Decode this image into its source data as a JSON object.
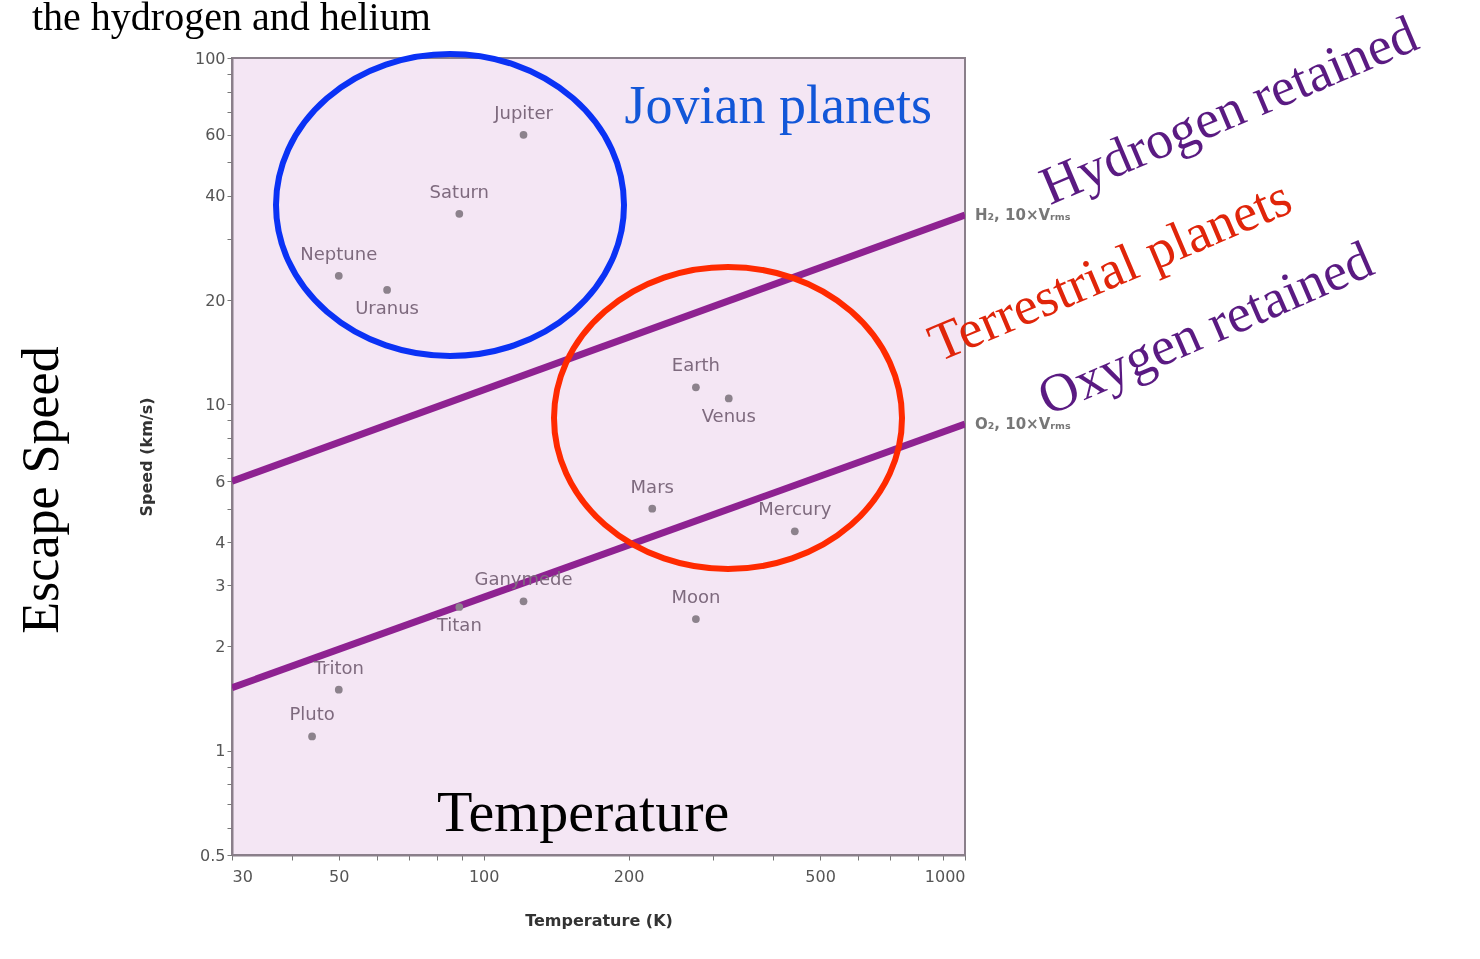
{
  "chart_data": {
    "type": "scatter",
    "title": "the hydrogen and helium",
    "xlabel": "Temperature (K)",
    "ylabel": "Speed (km/s)",
    "log": "xy",
    "marker": "circle",
    "xlim": [
      30,
      1000
    ],
    "ylim": [
      0.5,
      100
    ],
    "xticks": [
      30,
      {
        "value": 40,
        "label": null
      },
      50,
      {
        "value": 60,
        "label": null
      },
      {
        "value": 70,
        "label": null
      },
      {
        "value": 80,
        "label": null
      },
      {
        "value": 90,
        "label": null
      },
      100,
      200,
      {
        "value": 300,
        "label": null
      },
      {
        "value": 400,
        "label": null
      },
      500,
      {
        "value": 600,
        "label": null
      },
      {
        "value": 700,
        "label": null
      },
      {
        "value": 800,
        "label": null
      },
      {
        "value": 900,
        "label": null
      },
      1000
    ],
    "yticks": [
      0.5,
      {
        "value": 0.6,
        "label": null
      },
      {
        "value": 0.7,
        "label": null
      },
      {
        "value": 0.8,
        "label": null
      },
      {
        "value": 0.9,
        "label": null
      },
      1,
      2,
      3,
      4,
      {
        "value": 5,
        "label": null
      },
      6,
      {
        "value": 7,
        "label": null
      },
      {
        "value": 8,
        "label": null
      },
      {
        "value": 9,
        "label": null
      },
      10,
      20,
      {
        "value": 30,
        "label": null
      },
      40,
      {
        "value": 50,
        "label": null
      },
      60,
      {
        "value": 70,
        "label": null
      },
      {
        "value": 80,
        "label": null
      },
      {
        "value": 90,
        "label": null
      },
      100
    ],
    "series": [
      {
        "color": "#8c828c",
        "x": [
          121,
          89,
          50,
          63,
          276,
          323,
          224,
          443,
          276,
          121,
          89,
          50,
          44
        ],
        "values": [
          60,
          35.5,
          23.5,
          21.4,
          11.2,
          10.4,
          5.0,
          4.3,
          2.4,
          2.7,
          2.6,
          1.5,
          1.1
        ]
      },
      {
        "type": "line",
        "marker": "none",
        "line_style": "solid",
        "name": "H₂, 10×Vᵣₘₛ",
        "color": "#8e2291",
        "x": [
          30,
          1000
        ],
        "values": [
          6.0,
          35.2
        ]
      },
      {
        "type": "line",
        "marker": "none",
        "line_style": "solid",
        "name": "O₂, 10×Vᵣₘₛ",
        "color": "#8e2291",
        "x": [
          30,
          1000
        ],
        "values": [
          1.52,
          8.77
        ]
      }
    ],
    "annotations": [
      {
        "text": "Jupiter",
        "x": 121,
        "y": 60
      },
      {
        "text": "Saturn",
        "x": 89,
        "y": 35.5
      },
      {
        "text": "Neptune",
        "x": 50,
        "y": 23.5
      },
      {
        "text": "Uranus",
        "x": 63,
        "y": 21.4
      },
      {
        "text": "Earth",
        "x": 276,
        "y": 11.2
      },
      {
        "text": "Venus",
        "x": 323,
        "y": 10.4
      },
      {
        "text": "Mars",
        "x": 224,
        "y": 5.0
      },
      {
        "text": "Mercury",
        "x": 443,
        "y": 4.3
      },
      {
        "text": "Moon",
        "x": 276,
        "y": 2.4
      },
      {
        "text": "Ganymede",
        "x": 121,
        "y": 2.7
      },
      {
        "text": "Titan",
        "x": 89,
        "y": 2.6
      },
      {
        "text": "Triton",
        "x": 50,
        "y": 1.5
      },
      {
        "text": "Pluto",
        "x": 44,
        "y": 1.1
      },
      "Escape Speed",
      "Temperature",
      "Jovian planets",
      "Hydrogen retained",
      "Terrestrial planets",
      "Oxygen retained"
    ]
  }
}
